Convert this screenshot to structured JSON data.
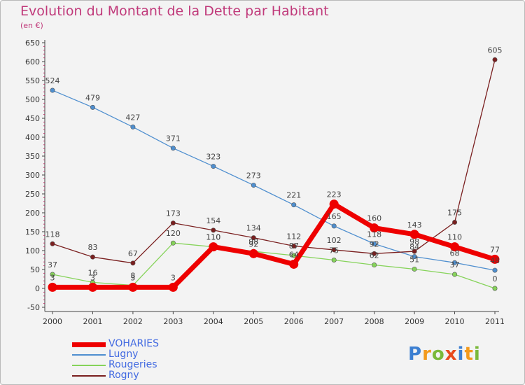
{
  "header": {
    "title": "Evolution du Montant de la Dette par Habitant",
    "subtitle": "(en €)"
  },
  "logo": {
    "letters": [
      "P",
      "r",
      "o",
      "x",
      "i",
      "t",
      "i"
    ],
    "colors": [
      "#3c7fd1",
      "#f39a1c",
      "#7ab93a",
      "#e84a1d",
      "#3c7fd1",
      "#f39a1c",
      "#7ab93a"
    ]
  },
  "chart_data": {
    "type": "line",
    "title": "Evolution du Montant de la Dette par Habitant",
    "subtitle": "(en €)",
    "xlabel": "",
    "ylabel": "",
    "x": [
      "2000",
      "2001",
      "2002",
      "2003",
      "2004",
      "2005",
      "2006",
      "2007",
      "2008",
      "2009",
      "2010",
      "2011"
    ],
    "ylim": [
      -50,
      650
    ],
    "yticks": [
      "-50",
      "0",
      "50",
      "100",
      "150",
      "200",
      "250",
      "300",
      "350",
      "400",
      "450",
      "500",
      "550",
      "600",
      "650"
    ],
    "grid": false,
    "legend": "bottom-left",
    "series": [
      {
        "name": "VOHARIES",
        "color": "#ee0000",
        "values": [
          3,
          3,
          3,
          3,
          110,
          92,
          64,
          223,
          160,
          143,
          110,
          77
        ],
        "labels": [
          "3",
          "3",
          "3",
          "3",
          "110",
          "92",
          "64",
          "223",
          "160",
          "143",
          "110",
          "77"
        ]
      },
      {
        "name": "Lugny",
        "color": "#4f8fcf",
        "values": [
          524,
          479,
          427,
          371,
          323,
          273,
          221,
          165,
          118,
          84,
          68,
          48
        ],
        "labels": [
          "524",
          "479",
          "427",
          "371",
          "323",
          "273",
          "221",
          "165",
          "118",
          "84",
          "68",
          "48"
        ]
      },
      {
        "name": "Rougeries",
        "color": "#86d35a",
        "values": [
          37,
          16,
          8,
          120,
          110,
          98,
          87,
          75,
          62,
          51,
          37,
          0
        ],
        "labels": [
          "37",
          "16",
          "8",
          "120",
          "110",
          "98",
          "87",
          "75",
          "62",
          "51",
          "37",
          "0"
        ]
      },
      {
        "name": "Rogny",
        "color": "#7a1f1f",
        "values": [
          118,
          83,
          67,
          173,
          154,
          134,
          112,
          102,
          92,
          98,
          175,
          605
        ],
        "labels": [
          "118",
          "83",
          "67",
          "173",
          "154",
          "134",
          "112",
          "102",
          "92",
          "98",
          "175",
          "605"
        ]
      }
    ]
  }
}
